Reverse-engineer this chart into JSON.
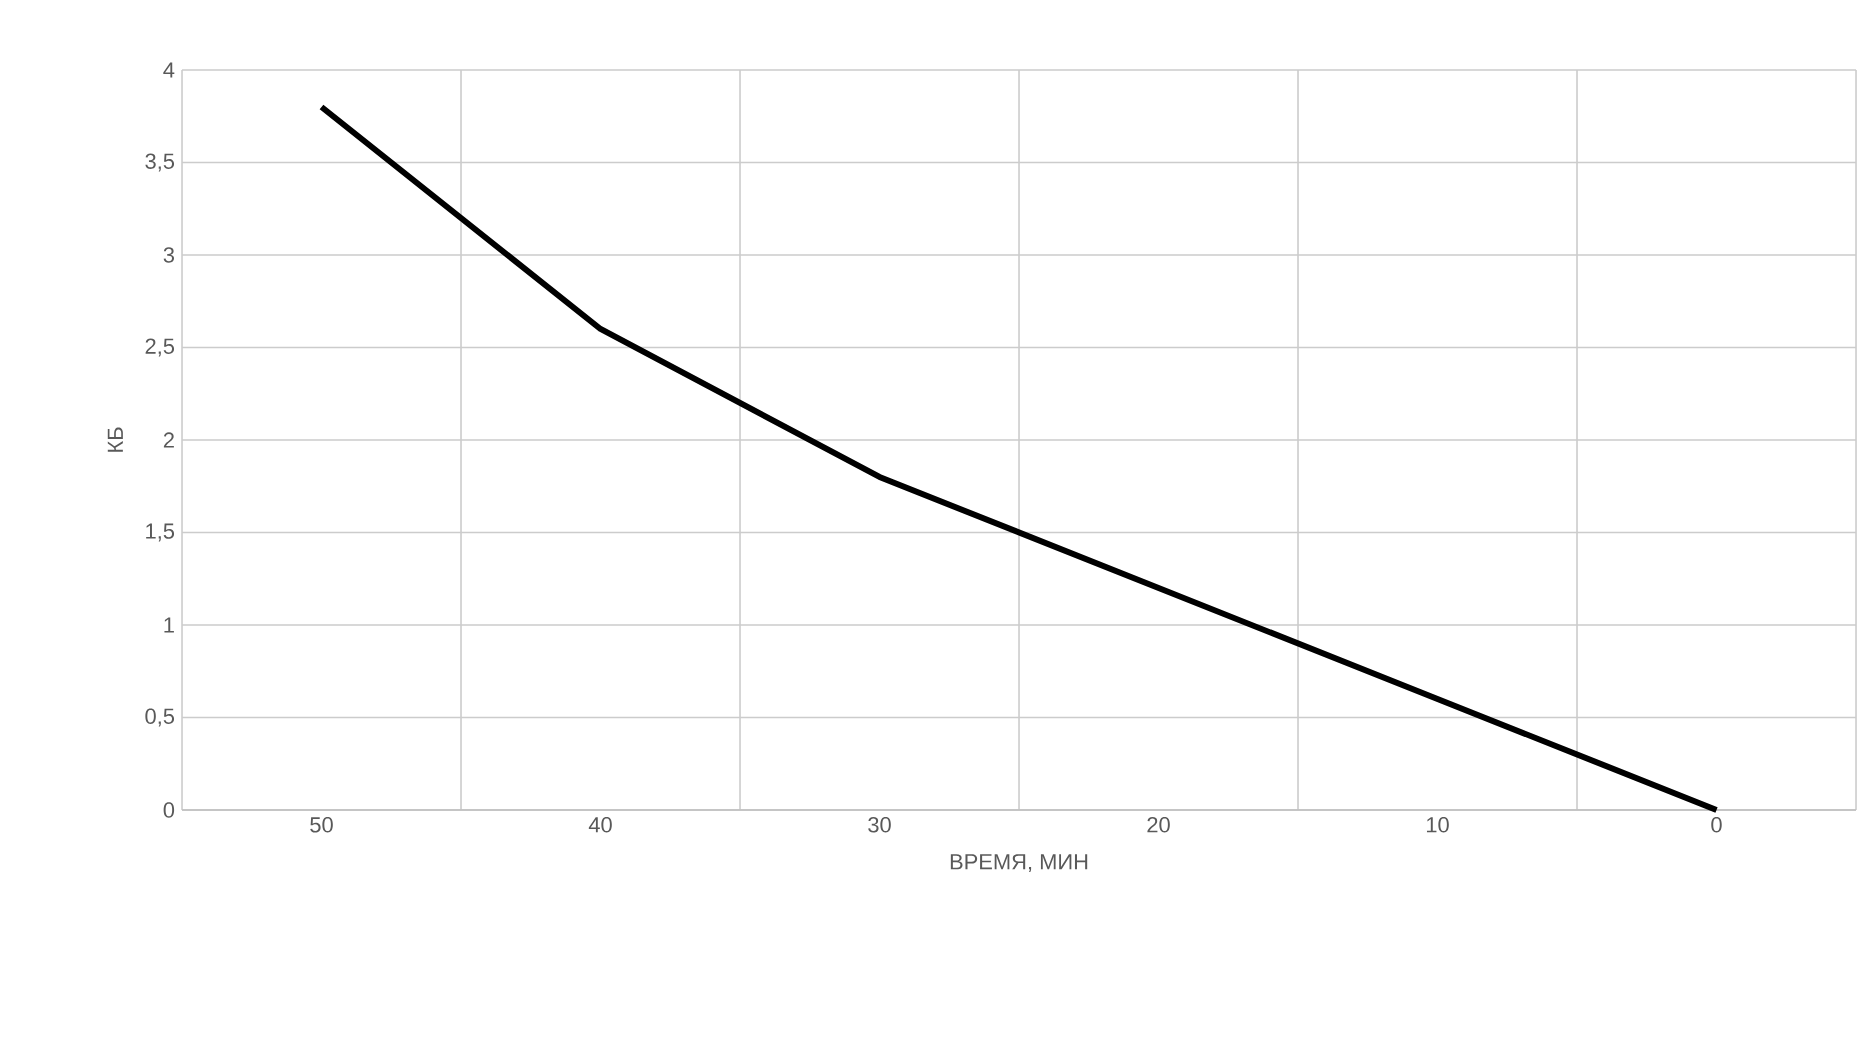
{
  "chart_data": {
    "type": "line",
    "xlabel": "ВРЕМЯ, МИН",
    "ylabel": "КБ",
    "categories": [
      "50",
      "40",
      "30",
      "20",
      "10",
      "0"
    ],
    "series": [
      {
        "color": "#000000",
        "values": [
          3.8,
          2.6,
          1.8,
          1.2,
          0.6,
          0
        ]
      }
    ],
    "ylim": [
      0,
      4
    ],
    "yticks": [
      0,
      {
        "value": 0.5,
        "label": "0,5"
      },
      1,
      {
        "value": 1.5,
        "label": "1,5"
      },
      2,
      {
        "value": 2.5,
        "label": "2,5"
      },
      3,
      {
        "value": 3.5,
        "label": "3,5"
      },
      4
    ],
    "grid": true,
    "marker": "none",
    "line_style": "solid"
  }
}
